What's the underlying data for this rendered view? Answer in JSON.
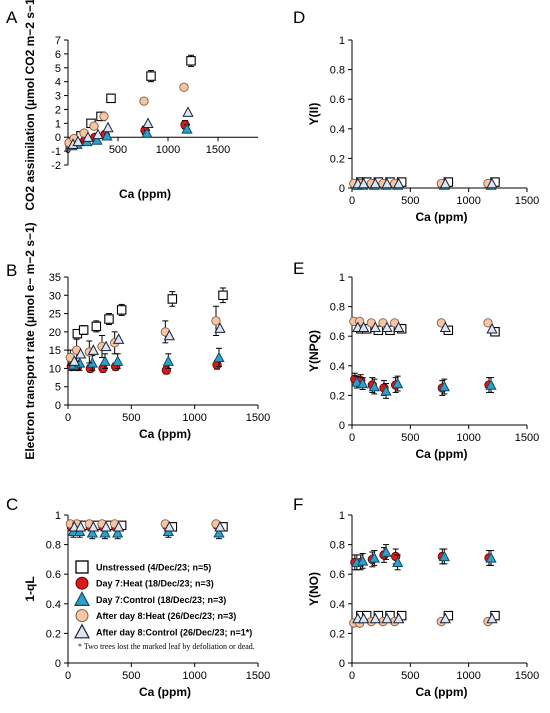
{
  "legend": {
    "items": [
      {
        "key": "unstressed",
        "label": "Unstressed (4/Dec/23; n=5)"
      },
      {
        "key": "day7_heat",
        "label": "Day 7:Heat (18/Dec/23; n=3)"
      },
      {
        "key": "day7_control",
        "label": "Day 7:Control (18/Dec/23; n=3)"
      },
      {
        "key": "after8_heat",
        "label": "After day 8:Heat (26/Dec/23; n=3)"
      },
      {
        "key": "after8_control",
        "label": "After day 8:Control (26/Dec/23; n=1*)"
      }
    ],
    "note": "* Two trees lost the marked leaf by defoliation or dead."
  },
  "series_styles": {
    "unstressed": {
      "shape": "square",
      "fill": "#ffffff",
      "stroke": "#000000"
    },
    "day7_heat": {
      "shape": "circle",
      "fill": "#d7191c",
      "stroke": "#6b0000"
    },
    "day7_control": {
      "shape": "triangle",
      "fill": "#2e9fc9",
      "stroke": "#0f4d66"
    },
    "after8_heat": {
      "shape": "circle",
      "fill": "#f4c6a8",
      "stroke": "#8a5a3c"
    },
    "after8_control": {
      "shape": "triangle",
      "fill": "#dde6f0",
      "stroke": "#1a2233"
    }
  },
  "chart_data": [
    {
      "panel": "A",
      "type": "scatter",
      "xlabel": "Ca (ppm)",
      "ylabel": "CO2 assimilation (µmol CO2 m−2 s−1)",
      "xlim": [
        0,
        1500
      ],
      "ylim": [
        -2,
        7
      ],
      "xticks": [
        0,
        500,
        1000,
        1500
      ],
      "yticks": [
        -2,
        -1,
        0,
        1,
        2,
        3,
        4,
        5,
        6,
        7
      ],
      "zero_line": true,
      "x": [
        50,
        100,
        200,
        300,
        400,
        800,
        1200
      ],
      "series": [
        {
          "key": "unstressed",
          "values": [
            -0.2,
            0.1,
            1.0,
            1.5,
            2.8,
            4.4,
            5.5
          ],
          "err": [
            0.2,
            0.2,
            0.2,
            0.3,
            0.3,
            0.4,
            0.4
          ]
        },
        {
          "key": "day7_heat",
          "values": [
            -0.6,
            -0.5,
            -0.2,
            0.0,
            0.2,
            0.5,
            0.9
          ],
          "err": [
            0.1,
            0.1,
            0.1,
            0.1,
            0.2,
            0.3,
            0.3
          ]
        },
        {
          "key": "day7_control",
          "values": [
            -0.6,
            -0.5,
            -0.3,
            -0.2,
            0.1,
            0.3,
            0.6
          ],
          "err": [
            0.1,
            0.1,
            0.1,
            0.1,
            0.1,
            0.2,
            0.3
          ]
        },
        {
          "key": "after8_heat",
          "values": [
            -0.4,
            -0.1,
            0.3,
            0.8,
            1.5,
            2.6,
            3.6
          ],
          "err": [
            0.1,
            0.1,
            0.1,
            0.1,
            0.2,
            0.2,
            0.2
          ]
        },
        {
          "key": "after8_control",
          "values": [
            -0.5,
            -0.3,
            0.0,
            0.2,
            0.7,
            1.0,
            1.8
          ],
          "err": [
            0,
            0,
            0,
            0,
            0,
            0,
            0
          ]
        }
      ]
    },
    {
      "panel": "D",
      "type": "scatter",
      "xlabel": "Ca (ppm)",
      "ylabel": "Y(II)",
      "xlim": [
        0,
        1500
      ],
      "ylim": [
        0,
        1
      ],
      "xticks": [
        0,
        500,
        1000,
        1500
      ],
      "yticks": [
        0,
        0.2,
        0.4,
        0.6,
        0.8,
        1
      ],
      "x": [
        50,
        100,
        200,
        300,
        400,
        800,
        1200
      ],
      "series": [
        {
          "key": "unstressed",
          "values": [
            0.04,
            0.04,
            0.04,
            0.04,
            0.04,
            0.04,
            0.04
          ],
          "err": [
            0.01,
            0.01,
            0.01,
            0.01,
            0.01,
            0.02,
            0.02
          ]
        },
        {
          "key": "day7_heat",
          "values": [
            0.02,
            0.02,
            0.02,
            0.02,
            0.02,
            0.02,
            0.02
          ],
          "err": [
            0.005,
            0.005,
            0.005,
            0.005,
            0.005,
            0.005,
            0.005
          ]
        },
        {
          "key": "day7_control",
          "values": [
            0.02,
            0.02,
            0.02,
            0.02,
            0.02,
            0.02,
            0.02
          ],
          "err": [
            0.005,
            0.005,
            0.005,
            0.005,
            0.005,
            0.005,
            0.005
          ]
        },
        {
          "key": "after8_heat",
          "values": [
            0.03,
            0.03,
            0.03,
            0.03,
            0.03,
            0.03,
            0.03
          ],
          "err": [
            0.005,
            0.005,
            0.005,
            0.005,
            0.005,
            0.005,
            0.005
          ]
        },
        {
          "key": "after8_control",
          "values": [
            0.03,
            0.03,
            0.03,
            0.03,
            0.03,
            0.03,
            0.03
          ],
          "err": [
            0,
            0,
            0,
            0,
            0,
            0,
            0
          ]
        }
      ]
    },
    {
      "panel": "B",
      "type": "scatter",
      "xlabel": "Ca (ppm)",
      "ylabel": "Electron transport rate (µmol e− m−2 s−1)",
      "xlim": [
        0,
        1500
      ],
      "ylim": [
        0,
        35
      ],
      "xticks": [
        0,
        500,
        1000,
        1500
      ],
      "yticks": [
        0,
        5,
        10,
        15,
        20,
        25,
        30,
        35
      ],
      "x": [
        50,
        100,
        200,
        300,
        400,
        800,
        1200
      ],
      "series": [
        {
          "key": "unstressed",
          "values": [
            19.5,
            20.5,
            21.5,
            23.5,
            26,
            29,
            30
          ],
          "err": [
            1,
            1.2,
            1.5,
            1.5,
            1.5,
            2,
            2
          ]
        },
        {
          "key": "day7_heat",
          "values": [
            10.5,
            10.5,
            10,
            10,
            10.5,
            9.5,
            11
          ],
          "err": [
            1,
            1,
            1,
            1,
            1,
            1,
            1.2
          ]
        },
        {
          "key": "day7_control",
          "values": [
            11,
            11.5,
            11.5,
            12,
            12,
            12,
            13
          ],
          "err": [
            1.5,
            2,
            2,
            2,
            2,
            2,
            2.5
          ]
        },
        {
          "key": "after8_heat",
          "values": [
            13,
            15,
            14.5,
            16,
            17,
            20,
            23
          ],
          "err": [
            2,
            3,
            3,
            3,
            3,
            3,
            4
          ]
        },
        {
          "key": "after8_control",
          "values": [
            12,
            14,
            15,
            16,
            18,
            19,
            21
          ],
          "err": [
            0,
            0,
            0,
            0,
            0,
            0,
            0
          ]
        }
      ]
    },
    {
      "panel": "E",
      "type": "scatter",
      "xlabel": "Ca (ppm)",
      "ylabel": "Y(NPQ)",
      "xlim": [
        0,
        1500
      ],
      "ylim": [
        0,
        1
      ],
      "xticks": [
        0,
        500,
        1000,
        1500
      ],
      "yticks": [
        0,
        0.2,
        0.4,
        0.6,
        0.8,
        1
      ],
      "x": [
        50,
        100,
        200,
        300,
        400,
        800,
        1200
      ],
      "series": [
        {
          "key": "unstressed",
          "values": [
            0.65,
            0.65,
            0.64,
            0.64,
            0.65,
            0.64,
            0.63
          ],
          "err": [
            0.02,
            0.02,
            0.02,
            0.02,
            0.02,
            0.02,
            0.02
          ]
        },
        {
          "key": "day7_heat",
          "values": [
            0.31,
            0.3,
            0.27,
            0.25,
            0.27,
            0.25,
            0.27
          ],
          "err": [
            0.04,
            0.04,
            0.05,
            0.05,
            0.05,
            0.05,
            0.05
          ]
        },
        {
          "key": "day7_control",
          "values": [
            0.29,
            0.28,
            0.26,
            0.23,
            0.28,
            0.26,
            0.27
          ],
          "err": [
            0.04,
            0.04,
            0.05,
            0.05,
            0.05,
            0.05,
            0.05
          ]
        },
        {
          "key": "after8_heat",
          "values": [
            0.7,
            0.7,
            0.69,
            0.69,
            0.69,
            0.69,
            0.69
          ],
          "err": [
            0.01,
            0.01,
            0.01,
            0.01,
            0.01,
            0.01,
            0.01
          ]
        },
        {
          "key": "after8_control",
          "values": [
            0.66,
            0.66,
            0.66,
            0.66,
            0.66,
            0.66,
            0.65
          ],
          "err": [
            0,
            0,
            0,
            0,
            0,
            0,
            0
          ]
        }
      ]
    },
    {
      "panel": "C",
      "type": "scatter",
      "xlabel": "Ca (ppm)",
      "ylabel": "1-qL",
      "xlim": [
        0,
        1500
      ],
      "ylim": [
        0,
        1
      ],
      "xticks": [
        0,
        500,
        1000,
        1500
      ],
      "yticks": [
        0,
        0.2,
        0.4,
        0.6,
        0.8,
        1
      ],
      "x": [
        50,
        100,
        200,
        300,
        400,
        800,
        1200
      ],
      "series": [
        {
          "key": "unstressed",
          "values": [
            0.93,
            0.93,
            0.93,
            0.93,
            0.93,
            0.92,
            0.92
          ],
          "err": [
            0.02,
            0.02,
            0.02,
            0.02,
            0.02,
            0.02,
            0.02
          ]
        },
        {
          "key": "day7_heat",
          "values": [
            0.92,
            0.92,
            0.92,
            0.92,
            0.92,
            0.93,
            0.93
          ],
          "err": [
            0.02,
            0.02,
            0.02,
            0.02,
            0.02,
            0.02,
            0.02
          ]
        },
        {
          "key": "day7_control",
          "values": [
            0.89,
            0.89,
            0.88,
            0.88,
            0.88,
            0.89,
            0.88
          ],
          "err": [
            0.04,
            0.04,
            0.04,
            0.04,
            0.04,
            0.04,
            0.04
          ]
        },
        {
          "key": "after8_heat",
          "values": [
            0.94,
            0.94,
            0.94,
            0.94,
            0.94,
            0.94,
            0.94
          ],
          "err": [
            0.01,
            0.01,
            0.01,
            0.01,
            0.01,
            0.01,
            0.01
          ]
        },
        {
          "key": "after8_control",
          "values": [
            0.92,
            0.92,
            0.92,
            0.92,
            0.92,
            0.92,
            0.92
          ],
          "err": [
            0,
            0,
            0,
            0,
            0,
            0,
            0
          ]
        }
      ]
    },
    {
      "panel": "F",
      "type": "scatter",
      "xlabel": "Ca (ppm)",
      "ylabel": "Y(NO)",
      "xlim": [
        0,
        1500
      ],
      "ylim": [
        0,
        1
      ],
      "xticks": [
        0,
        500,
        1000,
        1500
      ],
      "yticks": [
        0,
        0.2,
        0.4,
        0.6,
        0.8,
        1
      ],
      "x": [
        50,
        100,
        200,
        300,
        400,
        800,
        1200
      ],
      "series": [
        {
          "key": "unstressed",
          "values": [
            0.32,
            0.32,
            0.32,
            0.32,
            0.32,
            0.32,
            0.32
          ],
          "err": [
            0.02,
            0.02,
            0.02,
            0.02,
            0.02,
            0.02,
            0.02
          ]
        },
        {
          "key": "day7_heat",
          "values": [
            0.68,
            0.68,
            0.7,
            0.73,
            0.72,
            0.72,
            0.71
          ],
          "err": [
            0.05,
            0.05,
            0.05,
            0.05,
            0.05,
            0.05,
            0.05
          ]
        },
        {
          "key": "day7_control",
          "values": [
            0.68,
            0.69,
            0.71,
            0.75,
            0.68,
            0.72,
            0.71
          ],
          "err": [
            0.05,
            0.05,
            0.05,
            0.05,
            0.05,
            0.05,
            0.05
          ]
        },
        {
          "key": "after8_heat",
          "values": [
            0.27,
            0.27,
            0.28,
            0.28,
            0.28,
            0.28,
            0.28
          ],
          "err": [
            0.01,
            0.01,
            0.01,
            0.01,
            0.01,
            0.01,
            0.01
          ]
        },
        {
          "key": "after8_control",
          "values": [
            0.3,
            0.3,
            0.3,
            0.3,
            0.3,
            0.3,
            0.3
          ],
          "err": [
            0,
            0,
            0,
            0,
            0,
            0,
            0
          ]
        }
      ]
    }
  ]
}
